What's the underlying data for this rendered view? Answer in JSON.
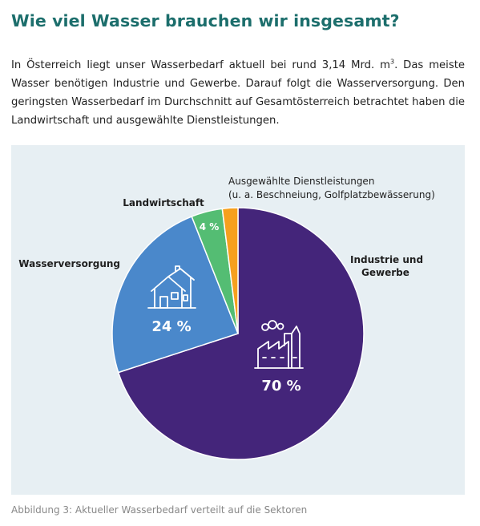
{
  "heading": "Wie viel Wasser brauchen wir insgesamt?",
  "intro": {
    "before_sup": "In Österreich liegt unser Wasserbedarf aktuell bei rund 3,14 Mrd. m",
    "sup": "3",
    "after_sup": ". Das meiste Wasser benötigen Industrie und Gewerbe. Darauf folgt die Wasserversorgung. Den geringsten Wasserbedarf im Durchschnitt auf Gesamtösterreich betrachtet haben die Landwirtschaft und ausgewählte Dienstleistungen."
  },
  "caption": "Abbildung 3: Aktueller Wasserbedarf verteilt auf die Sektoren",
  "chart_data": {
    "type": "pie",
    "title": "",
    "slices": [
      {
        "label": "Industrie und Gewerbe",
        "value": 70,
        "value_label": "70 %",
        "color": "#44257a",
        "icon": "factory-icon"
      },
      {
        "label": "Wasserversorgung",
        "value": 24,
        "value_label": "24 %",
        "color": "#4a88cb",
        "icon": "house-icon"
      },
      {
        "label": "Landwirtschaft",
        "value": 4,
        "value_label": "4 %",
        "color": "#54bd73"
      },
      {
        "label": "Ausgewählte Dienstleistungen",
        "sublabel": "(u. a. Beschneiung, Golfplatzbewässerung)",
        "value": 2,
        "value_label": "",
        "color": "#f6a01e"
      }
    ],
    "start": "top",
    "direction": "clockwise",
    "legend": "none"
  }
}
